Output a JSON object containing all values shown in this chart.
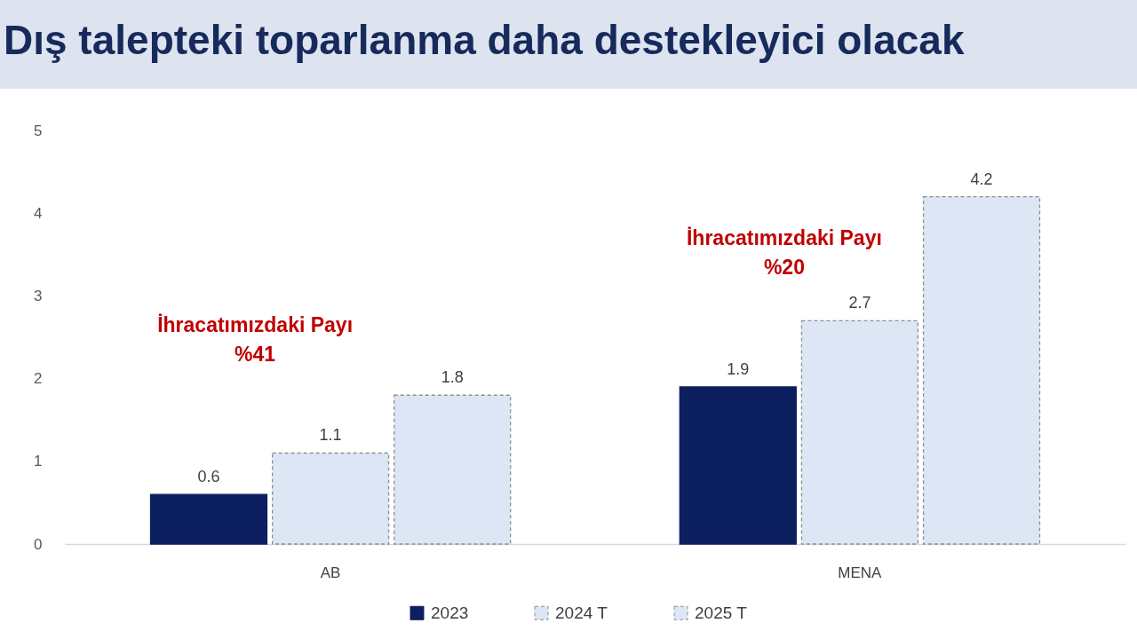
{
  "chart_data": {
    "type": "bar",
    "title": "Dış talepteki toparlanma daha destekleyici olacak",
    "categories": [
      "AB",
      "MENA"
    ],
    "series": [
      {
        "name": "2023",
        "color": "#0c1f5e",
        "values": [
          0.6,
          1.9
        ]
      },
      {
        "name": "2024 T",
        "color": "#dce6f4",
        "values": [
          1.1,
          2.7
        ],
        "line_style": "dashed"
      },
      {
        "name": "2025 T",
        "color": "#dce6f4",
        "values": [
          1.8,
          4.2
        ],
        "line_style": "dashed"
      }
    ],
    "ylim": [
      0,
      5
    ],
    "yticks": [
      0,
      1,
      2,
      3,
      4,
      5
    ],
    "grid": false,
    "legend": "bottom",
    "data_labels": true,
    "annotations": [
      "İhracatımızdaki Payı\n%41",
      "İhracatımızdaki Payı\n%20"
    ]
  }
}
